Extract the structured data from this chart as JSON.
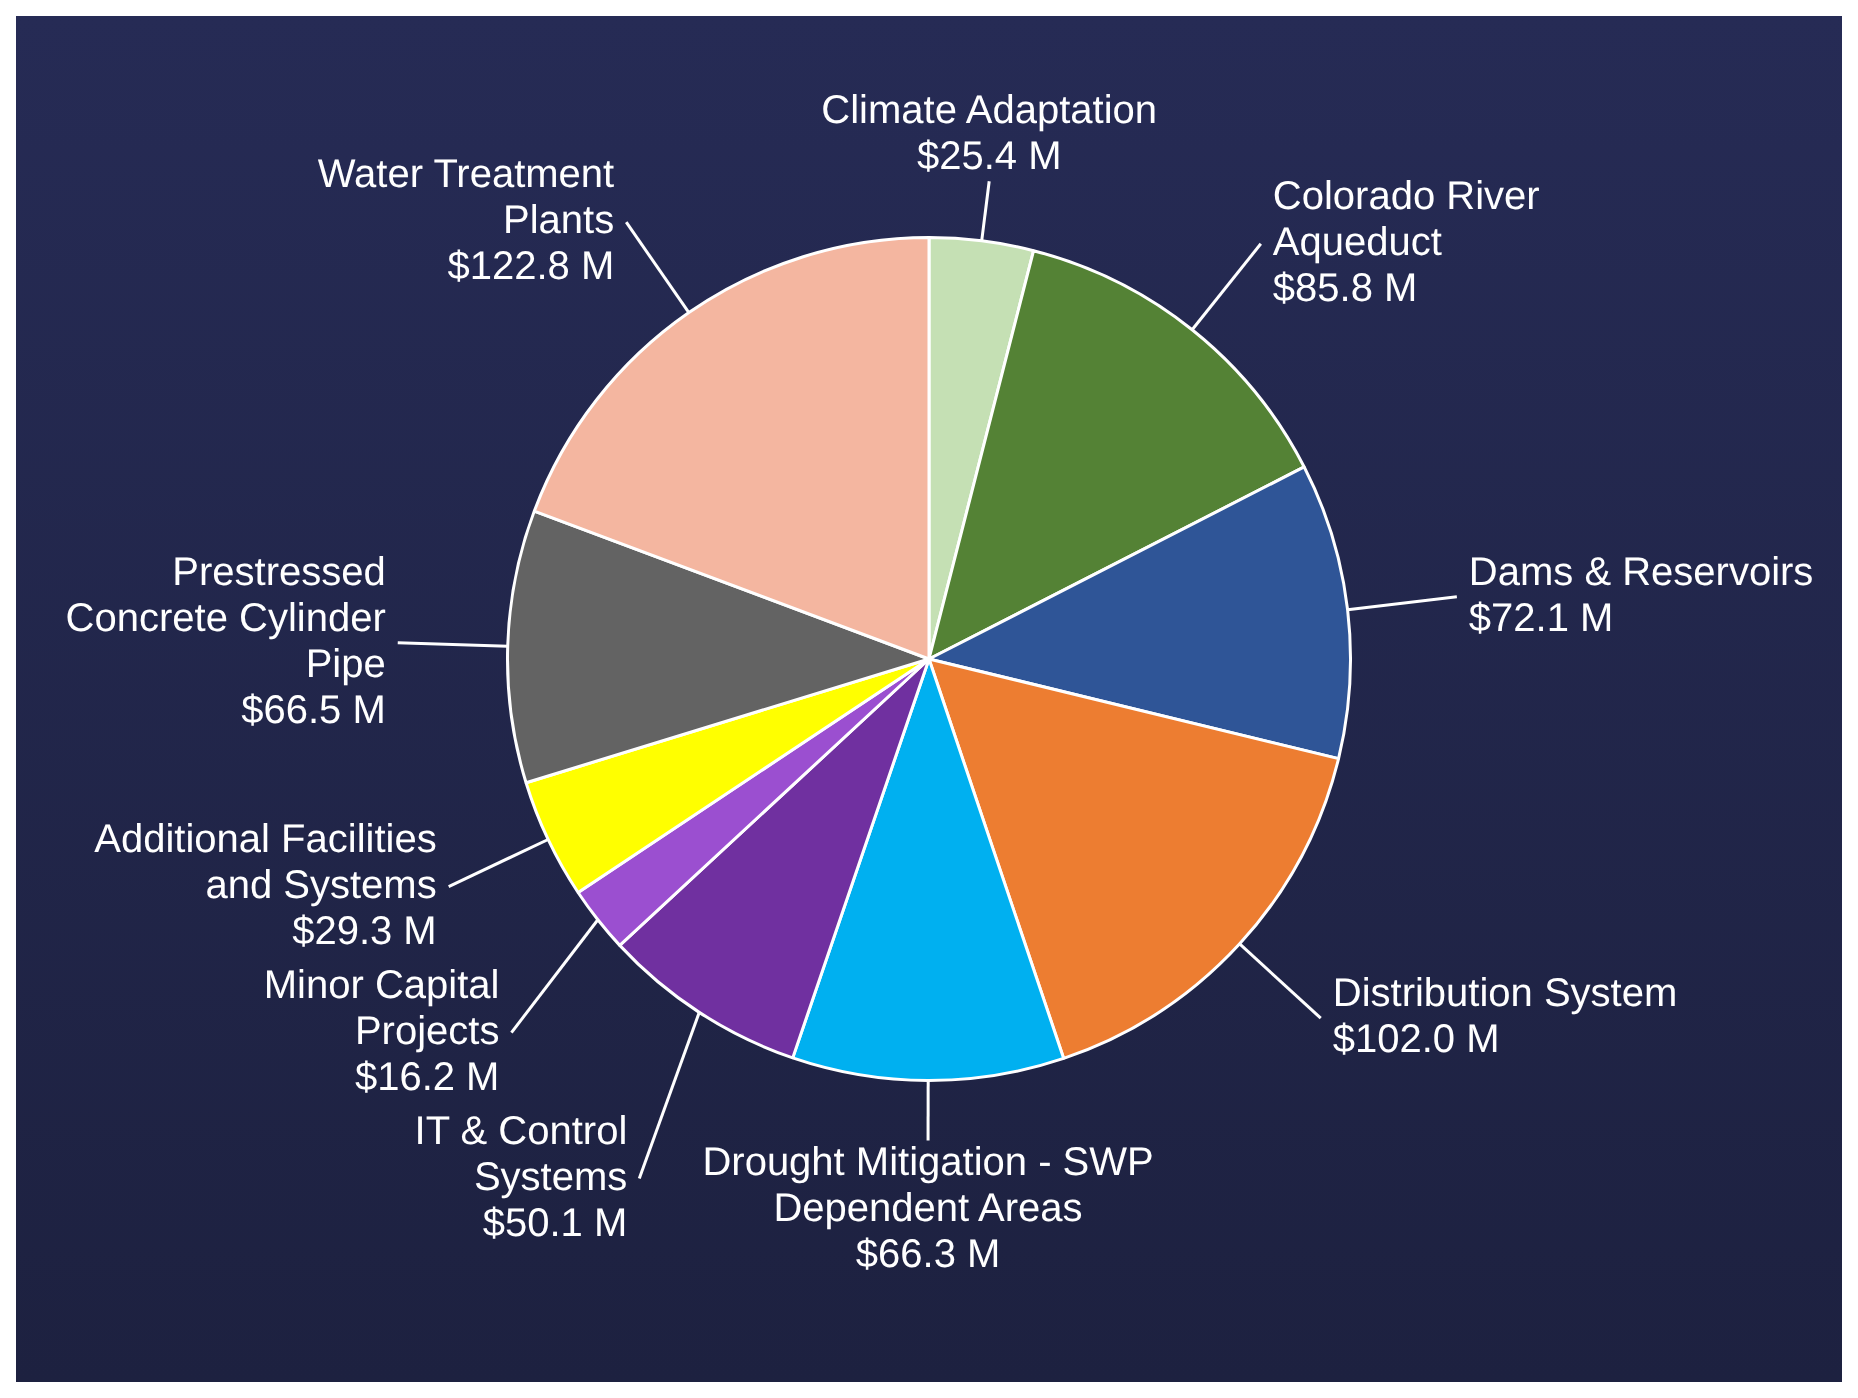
{
  "chart_data": {
    "type": "pie",
    "categories": [
      "Climate Adaptation",
      "Colorado River Aqueduct",
      "Dams & Reservoirs",
      "Distribution System",
      "Drought Mitigation - SWP Dependent Areas",
      "IT & Control Systems",
      "Minor Capital Projects",
      "Additional Facilities and Systems",
      "Prestressed Concrete Cylinder Pipe",
      "Water Treatment Plants"
    ],
    "values": [
      25.4,
      85.8,
      72.1,
      102.0,
      66.3,
      50.1,
      16.2,
      29.3,
      66.5,
      122.8
    ],
    "colors": [
      "#c5e0b4",
      "#548235",
      "#2f5597",
      "#ed7d31",
      "#00b0f0",
      "#7030a0",
      "#9b4fd0",
      "#ffff00",
      "#636363",
      "#f4b6a0"
    ],
    "value_labels": [
      "$25.4 M",
      "$85.8 M",
      "$72.1 M",
      "$102.0 M",
      "$66.3 M",
      "$50.1 M",
      "$16.2 M",
      "$29.3 M",
      "$66.5 M",
      "$122.8 M"
    ]
  }
}
